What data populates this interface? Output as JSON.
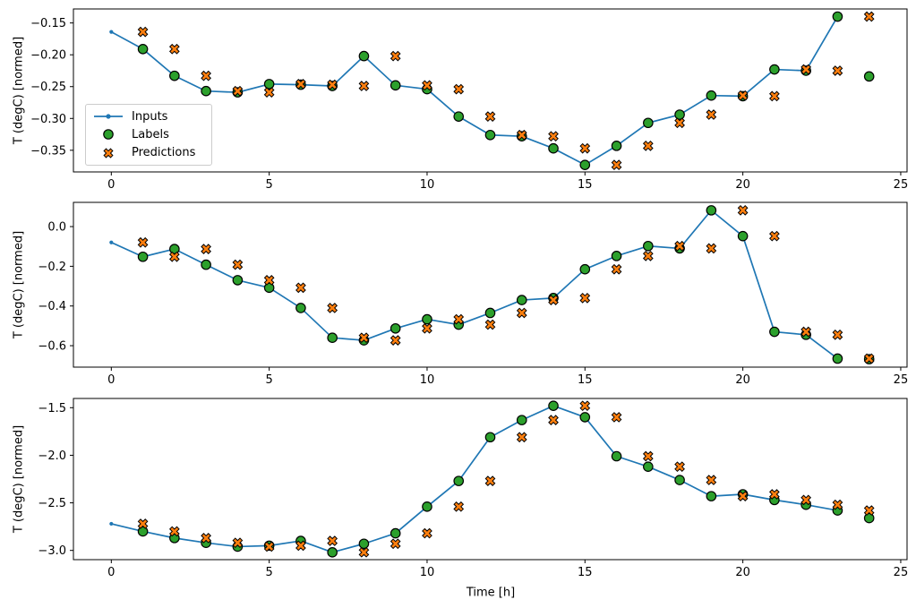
{
  "figure": {
    "xlabel": "Time [h]",
    "background": "#ffffff"
  },
  "legend": {
    "position": "center left of subplot 1",
    "items": [
      {
        "key": "inputs",
        "label": "Inputs",
        "marker": "line-with-dot"
      },
      {
        "key": "labels",
        "label": "Labels",
        "marker": "filled-circle"
      },
      {
        "key": "predictions",
        "label": "Predictions",
        "marker": "filled-x"
      }
    ]
  },
  "colors": {
    "inputs_line": "#1f77b4",
    "labels_marker": "#2ca02c",
    "predictions_marker": "#ff7f0e",
    "marker_edge": "#000000",
    "axis": "#000000",
    "legend_border": "#cccccc"
  },
  "chart_data": [
    {
      "type": "line",
      "ylabel": "T (degC) [normed]",
      "xlabel": "",
      "grid": false,
      "xlim": [
        -1.2,
        25.2
      ],
      "ylim": [
        -0.384,
        -0.128
      ],
      "xticks": [
        0,
        5,
        10,
        15,
        20,
        25
      ],
      "xtick_labels": [
        "0",
        "5",
        "10",
        "15",
        "20",
        "25"
      ],
      "yticks": [
        -0.15,
        -0.2,
        -0.25,
        -0.3,
        -0.35
      ],
      "ytick_labels": [
        "−0.15",
        "−0.20",
        "−0.25",
        "−0.30",
        "−0.35"
      ],
      "series": [
        {
          "name": "Inputs",
          "kind": "line+dot",
          "x": [
            0,
            1,
            2,
            3,
            4,
            5,
            6,
            7,
            8,
            9,
            10,
            11,
            12,
            13,
            14,
            15,
            16,
            17,
            18,
            19,
            20,
            21,
            22,
            23
          ],
          "y": [
            -0.164,
            -0.191,
            -0.233,
            -0.257,
            -0.259,
            -0.246,
            -0.247,
            -0.249,
            -0.202,
            -0.248,
            -0.254,
            -0.297,
            -0.326,
            -0.328,
            -0.347,
            -0.373,
            -0.343,
            -0.307,
            -0.294,
            -0.264,
            -0.265,
            -0.223,
            -0.225,
            -0.14
          ]
        },
        {
          "name": "Labels",
          "kind": "scatter-circle",
          "x": [
            1,
            2,
            3,
            4,
            5,
            6,
            7,
            8,
            9,
            10,
            11,
            12,
            13,
            14,
            15,
            16,
            17,
            18,
            19,
            20,
            21,
            22,
            23,
            24
          ],
          "y": [
            -0.191,
            -0.233,
            -0.257,
            -0.259,
            -0.246,
            -0.247,
            -0.249,
            -0.202,
            -0.248,
            -0.254,
            -0.297,
            -0.326,
            -0.328,
            -0.347,
            -0.373,
            -0.343,
            -0.307,
            -0.294,
            -0.264,
            -0.265,
            -0.223,
            -0.225,
            -0.14,
            -0.234
          ]
        },
        {
          "name": "Predictions",
          "kind": "scatter-x",
          "x": [
            1,
            2,
            3,
            4,
            5,
            6,
            7,
            8,
            9,
            10,
            11,
            12,
            13,
            14,
            15,
            16,
            17,
            18,
            19,
            20,
            21,
            22,
            23,
            24
          ],
          "y": [
            -0.164,
            -0.191,
            -0.233,
            -0.257,
            -0.259,
            -0.246,
            -0.247,
            -0.249,
            -0.202,
            -0.248,
            -0.254,
            -0.297,
            -0.326,
            -0.328,
            -0.347,
            -0.373,
            -0.343,
            -0.307,
            -0.294,
            -0.264,
            -0.265,
            -0.223,
            -0.225,
            -0.14
          ]
        }
      ]
    },
    {
      "type": "line",
      "ylabel": "T (degC) [normed]",
      "xlabel": "",
      "grid": false,
      "xlim": [
        -1.2,
        25.2
      ],
      "ylim": [
        -0.708,
        0.122
      ],
      "xticks": [
        0,
        5,
        10,
        15,
        20,
        25
      ],
      "xtick_labels": [
        "0",
        "5",
        "10",
        "15",
        "20",
        "25"
      ],
      "yticks": [
        0.0,
        -0.2,
        -0.4,
        -0.6
      ],
      "ytick_labels": [
        "0.0",
        "−0.2",
        "−0.4",
        "−0.6"
      ],
      "series": [
        {
          "name": "Inputs",
          "kind": "line+dot",
          "x": [
            0,
            1,
            2,
            3,
            4,
            5,
            6,
            7,
            8,
            9,
            10,
            11,
            12,
            13,
            14,
            15,
            16,
            17,
            18,
            19,
            20,
            21,
            22,
            23
          ],
          "y": [
            -0.08,
            -0.152,
            -0.113,
            -0.192,
            -0.27,
            -0.308,
            -0.41,
            -0.56,
            -0.573,
            -0.513,
            -0.467,
            -0.494,
            -0.435,
            -0.37,
            -0.36,
            -0.215,
            -0.148,
            -0.098,
            -0.11,
            0.082,
            -0.048,
            -0.53,
            -0.545,
            -0.665
          ]
        },
        {
          "name": "Labels",
          "kind": "scatter-circle",
          "x": [
            1,
            2,
            3,
            4,
            5,
            6,
            7,
            8,
            9,
            10,
            11,
            12,
            13,
            14,
            15,
            16,
            17,
            18,
            19,
            20,
            21,
            22,
            23,
            24
          ],
          "y": [
            -0.152,
            -0.113,
            -0.192,
            -0.27,
            -0.308,
            -0.41,
            -0.56,
            -0.573,
            -0.513,
            -0.467,
            -0.494,
            -0.435,
            -0.37,
            -0.36,
            -0.215,
            -0.148,
            -0.098,
            -0.11,
            0.082,
            -0.048,
            -0.53,
            -0.545,
            -0.665,
            -0.668
          ]
        },
        {
          "name": "Predictions",
          "kind": "scatter-x",
          "x": [
            1,
            2,
            3,
            4,
            5,
            6,
            7,
            8,
            9,
            10,
            11,
            12,
            13,
            14,
            15,
            16,
            17,
            18,
            19,
            20,
            21,
            22,
            23,
            24
          ],
          "y": [
            -0.08,
            -0.152,
            -0.113,
            -0.192,
            -0.27,
            -0.308,
            -0.41,
            -0.56,
            -0.573,
            -0.513,
            -0.467,
            -0.494,
            -0.435,
            -0.37,
            -0.36,
            -0.215,
            -0.148,
            -0.098,
            -0.11,
            0.082,
            -0.048,
            -0.53,
            -0.545,
            -0.665
          ]
        }
      ]
    },
    {
      "type": "line",
      "ylabel": "T (degC) [normed]",
      "xlabel": "Time [h]",
      "grid": false,
      "xlim": [
        -1.2,
        25.2
      ],
      "ylim": [
        -3.097,
        -1.403
      ],
      "xticks": [
        0,
        5,
        10,
        15,
        20,
        25
      ],
      "xtick_labels": [
        "0",
        "5",
        "10",
        "15",
        "20",
        "25"
      ],
      "yticks": [
        -1.5,
        -2.0,
        -2.5,
        -3.0
      ],
      "ytick_labels": [
        "−1.5",
        "−2.0",
        "−2.5",
        "−3.0"
      ],
      "series": [
        {
          "name": "Inputs",
          "kind": "line+dot",
          "x": [
            0,
            1,
            2,
            3,
            4,
            5,
            6,
            7,
            8,
            9,
            10,
            11,
            12,
            13,
            14,
            15,
            16,
            17,
            18,
            19,
            20,
            21,
            22,
            23
          ],
          "y": [
            -2.72,
            -2.8,
            -2.87,
            -2.92,
            -2.96,
            -2.95,
            -2.9,
            -3.02,
            -2.93,
            -2.82,
            -2.54,
            -2.27,
            -1.81,
            -1.63,
            -1.48,
            -1.6,
            -2.01,
            -2.12,
            -2.26,
            -2.43,
            -2.41,
            -2.47,
            -2.52,
            -2.58
          ]
        },
        {
          "name": "Labels",
          "kind": "scatter-circle",
          "x": [
            1,
            2,
            3,
            4,
            5,
            6,
            7,
            8,
            9,
            10,
            11,
            12,
            13,
            14,
            15,
            16,
            17,
            18,
            19,
            20,
            21,
            22,
            23,
            24
          ],
          "y": [
            -2.8,
            -2.87,
            -2.92,
            -2.96,
            -2.95,
            -2.9,
            -3.02,
            -2.93,
            -2.82,
            -2.54,
            -2.27,
            -1.81,
            -1.63,
            -1.48,
            -1.6,
            -2.01,
            -2.12,
            -2.26,
            -2.43,
            -2.41,
            -2.47,
            -2.52,
            -2.58,
            -2.66
          ]
        },
        {
          "name": "Predictions",
          "kind": "scatter-x",
          "x": [
            1,
            2,
            3,
            4,
            5,
            6,
            7,
            8,
            9,
            10,
            11,
            12,
            13,
            14,
            15,
            16,
            17,
            18,
            19,
            20,
            21,
            22,
            23,
            24
          ],
          "y": [
            -2.72,
            -2.8,
            -2.87,
            -2.92,
            -2.96,
            -2.95,
            -2.9,
            -3.02,
            -2.93,
            -2.82,
            -2.54,
            -2.27,
            -1.81,
            -1.63,
            -1.48,
            -1.6,
            -2.01,
            -2.12,
            -2.26,
            -2.43,
            -2.41,
            -2.47,
            -2.52,
            -2.58
          ]
        }
      ]
    }
  ]
}
